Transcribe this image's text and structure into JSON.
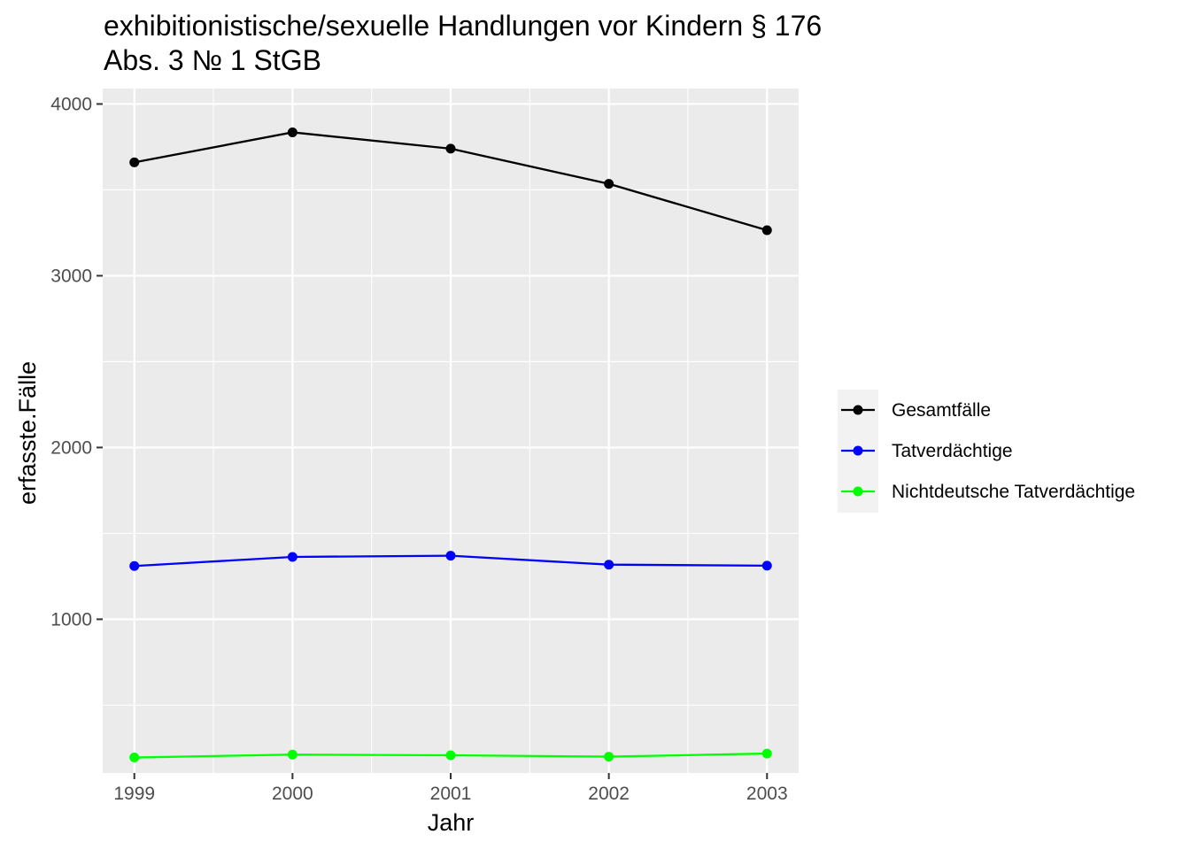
{
  "chart_data": {
    "type": "line",
    "title_line1": "exhibitionistische/sexuelle Handlungen vor Kindern § 176",
    "title_line2": "Abs. 3 № 1 StGB",
    "xlabel": "Jahr",
    "ylabel": "erfasste.Fälle",
    "x": [
      1999,
      2000,
      2001,
      2002,
      2003
    ],
    "x_tick_labels": [
      "1999",
      "2000",
      "2001",
      "2002",
      "2003"
    ],
    "y_ticks": [
      1000,
      2000,
      3000,
      4000
    ],
    "y_tick_labels": [
      "1000",
      "2000",
      "3000",
      "4000"
    ],
    "xlim": [
      1998.8,
      2003.2
    ],
    "ylim": [
      105,
      4090
    ],
    "grid": true,
    "panel_background": "#ebebeb",
    "grid_color": "#ffffff",
    "legend_position": "right",
    "series": [
      {
        "name": "Gesamtfälle",
        "color": "#000000",
        "values": [
          3660,
          3835,
          3740,
          3535,
          3265
        ]
      },
      {
        "name": "Tatverdächtige",
        "color": "#0000ff",
        "values": [
          1310,
          1363,
          1370,
          1318,
          1312
        ]
      },
      {
        "name": "Nichtdeutsche Tatverdächtige",
        "color": "#00ff00",
        "values": [
          195,
          212,
          208,
          200,
          218
        ]
      }
    ]
  }
}
